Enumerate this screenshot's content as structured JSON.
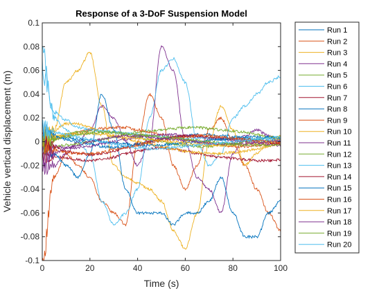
{
  "chart_data": {
    "type": "line",
    "title": "Response of a 3-DoF Suspension Model",
    "xlabel": "Time (s)",
    "ylabel": "Vehicle vertical displacement (m)",
    "xlim": [
      0,
      100
    ],
    "ylim": [
      -0.1,
      0.1
    ],
    "xticks": [
      0,
      20,
      40,
      60,
      80,
      100
    ],
    "xtick_labels": [
      "0",
      "20",
      "40",
      "60",
      "80",
      "100"
    ],
    "yticks": [
      -0.1,
      -0.08,
      -0.06,
      -0.04,
      -0.02,
      0,
      0.02,
      0.04,
      0.06,
      0.08,
      0.1
    ],
    "ytick_labels": [
      "-0.1",
      "-0.08",
      "-0.06",
      "-0.04",
      "-0.02",
      "0",
      "0.02",
      "0.04",
      "0.06",
      "0.08",
      "0.1"
    ],
    "grid": false,
    "legend_position": "outside-right",
    "x": [
      0,
      5,
      10,
      15,
      20,
      25,
      30,
      35,
      40,
      45,
      50,
      55,
      60,
      65,
      70,
      75,
      80,
      85,
      90,
      95,
      100
    ],
    "series": [
      {
        "name": "Run 1",
        "color": "#0072BD",
        "values": [
          0.01,
          0.005,
          0.002,
          0.0,
          -0.002,
          -0.004,
          -0.005,
          -0.004,
          -0.002,
          0.0,
          0.002,
          0.004,
          0.005,
          0.006,
          0.006,
          0.005,
          0.004,
          0.003,
          0.002,
          0.001,
          0.0
        ]
      },
      {
        "name": "Run 2",
        "color": "#D95319",
        "values": [
          -0.1,
          -0.03,
          -0.01,
          -0.02,
          -0.03,
          -0.05,
          -0.06,
          -0.07,
          0.0,
          0.04,
          0.02,
          -0.02,
          -0.04,
          -0.02,
          0.01,
          0.02,
          0.0,
          -0.02,
          -0.04,
          -0.06,
          -0.075
        ]
      },
      {
        "name": "Run 3",
        "color": "#EDB120",
        "values": [
          0.0,
          0.01,
          0.05,
          0.06,
          0.075,
          0.03,
          -0.02,
          -0.03,
          -0.035,
          -0.04,
          -0.05,
          -0.075,
          -0.09,
          -0.06,
          0.0,
          0.03,
          0.01,
          -0.02,
          -0.01,
          0.0,
          0.005
        ]
      },
      {
        "name": "Run 4",
        "color": "#7E2F8E",
        "values": [
          -0.02,
          -0.02,
          -0.01,
          0.0,
          0.01,
          0.03,
          0.02,
          0.0,
          -0.02,
          0.0,
          0.08,
          0.06,
          0.0,
          -0.03,
          -0.04,
          -0.06,
          -0.01,
          0.005,
          0.01,
          0.005,
          0.0
        ]
      },
      {
        "name": "Run 5",
        "color": "#77AC30",
        "values": [
          -0.005,
          -0.004,
          -0.003,
          -0.002,
          0.0,
          0.002,
          0.004,
          0.006,
          0.008,
          0.009,
          0.01,
          0.011,
          0.012,
          0.012,
          0.011,
          0.01,
          0.009,
          0.008,
          0.006,
          0.004,
          0.002
        ]
      },
      {
        "name": "Run 6",
        "color": "#4DBEEE",
        "values": [
          0.075,
          0.02,
          0.01,
          0.0,
          -0.01,
          -0.05,
          -0.07,
          -0.06,
          -0.04,
          0.02,
          0.06,
          0.07,
          0.05,
          0.0,
          -0.02,
          -0.01,
          0.02,
          0.03,
          0.04,
          0.05,
          0.055
        ]
      },
      {
        "name": "Run 7",
        "color": "#A2142F",
        "values": [
          -0.01,
          -0.012,
          -0.014,
          -0.015,
          -0.016,
          -0.015,
          -0.013,
          -0.01,
          -0.008,
          -0.006,
          -0.005,
          -0.006,
          -0.008,
          -0.01,
          -0.012,
          -0.013,
          -0.014,
          -0.015,
          -0.016,
          -0.016,
          -0.015
        ]
      },
      {
        "name": "Run 8",
        "color": "#0072BD",
        "values": [
          0.0,
          -0.01,
          -0.02,
          -0.03,
          -0.01,
          0.04,
          0.01,
          -0.04,
          -0.06,
          -0.06,
          -0.06,
          -0.07,
          -0.06,
          -0.06,
          -0.05,
          -0.03,
          -0.06,
          -0.08,
          -0.08,
          -0.06,
          -0.05
        ]
      },
      {
        "name": "Run 9",
        "color": "#D95319",
        "values": [
          -0.002,
          0.002,
          0.005,
          0.008,
          0.01,
          0.011,
          0.012,
          0.012,
          0.01,
          0.008,
          0.006,
          0.004,
          0.002,
          0.0,
          -0.002,
          -0.003,
          -0.004,
          -0.004,
          -0.003,
          -0.002,
          -0.001
        ]
      },
      {
        "name": "Run 10",
        "color": "#EDB120",
        "values": [
          0.005,
          0.01,
          0.015,
          0.015,
          0.012,
          0.008,
          0.005,
          0.002,
          0.0,
          -0.002,
          -0.004,
          -0.006,
          -0.008,
          -0.009,
          -0.01,
          -0.01,
          -0.009,
          -0.008,
          -0.006,
          -0.004,
          -0.002
        ]
      },
      {
        "name": "Run 11",
        "color": "#7E2F8E",
        "values": [
          -0.003,
          -0.004,
          -0.005,
          -0.005,
          -0.004,
          -0.002,
          0.0,
          0.002,
          0.004,
          0.005,
          0.006,
          0.006,
          0.005,
          0.004,
          0.003,
          0.002,
          0.001,
          0.0,
          -0.001,
          -0.002,
          -0.003
        ]
      },
      {
        "name": "Run 12",
        "color": "#77AC30",
        "values": [
          0.0,
          0.003,
          0.006,
          0.008,
          0.009,
          0.009,
          0.008,
          0.006,
          0.004,
          0.002,
          0.0,
          -0.002,
          -0.003,
          -0.004,
          -0.004,
          -0.003,
          -0.002,
          0.0,
          0.002,
          0.003,
          0.004
        ]
      },
      {
        "name": "Run 13",
        "color": "#4DBEEE",
        "values": [
          0.06,
          0.025,
          0.018,
          0.012,
          0.01,
          0.009,
          0.008,
          0.007,
          0.006,
          0.005,
          0.004,
          0.004,
          0.003,
          0.003,
          0.003,
          0.002,
          0.002,
          0.002,
          0.001,
          0.001,
          0.001
        ]
      },
      {
        "name": "Run 14",
        "color": "#A2142F",
        "values": [
          0.0,
          -0.004,
          -0.008,
          -0.01,
          -0.011,
          -0.01,
          -0.008,
          -0.005,
          -0.002,
          0.0,
          0.002,
          0.004,
          0.005,
          0.005,
          0.004,
          0.003,
          0.002,
          0.001,
          0.0,
          -0.001,
          -0.002
        ]
      },
      {
        "name": "Run 15",
        "color": "#0072BD",
        "values": [
          0.005,
          0.004,
          0.003,
          0.002,
          0.001,
          0.0,
          -0.001,
          -0.002,
          -0.003,
          -0.003,
          -0.003,
          -0.002,
          -0.001,
          0.0,
          0.001,
          0.002,
          0.003,
          0.004,
          0.004,
          0.004,
          0.003
        ]
      },
      {
        "name": "Run 16",
        "color": "#D95319",
        "values": [
          -0.005,
          -0.007,
          -0.009,
          -0.01,
          -0.01,
          -0.009,
          -0.007,
          -0.005,
          -0.003,
          -0.001,
          0.001,
          0.003,
          0.004,
          0.005,
          0.005,
          0.004,
          0.003,
          0.002,
          0.001,
          0.0,
          -0.001
        ]
      },
      {
        "name": "Run 17",
        "color": "#EDB120",
        "values": [
          0.002,
          0.004,
          0.006,
          0.007,
          0.007,
          0.006,
          0.005,
          0.004,
          0.003,
          0.002,
          0.001,
          0.0,
          -0.001,
          -0.002,
          -0.003,
          -0.003,
          -0.003,
          -0.002,
          -0.001,
          0.0,
          0.001
        ]
      },
      {
        "name": "Run 18",
        "color": "#7E2F8E",
        "values": [
          -0.015,
          -0.01,
          -0.006,
          -0.003,
          0.0,
          0.002,
          0.004,
          0.005,
          0.005,
          0.004,
          0.003,
          0.002,
          0.001,
          0.0,
          -0.001,
          -0.002,
          -0.002,
          -0.002,
          -0.001,
          0.0,
          0.001
        ]
      },
      {
        "name": "Run 19",
        "color": "#77AC30",
        "values": [
          0.0,
          0.002,
          0.004,
          0.006,
          0.007,
          0.008,
          0.008,
          0.007,
          0.006,
          0.005,
          0.004,
          0.003,
          0.002,
          0.001,
          0.0,
          -0.001,
          -0.002,
          -0.003,
          -0.003,
          -0.003,
          -0.002
        ]
      },
      {
        "name": "Run 20",
        "color": "#4DBEEE",
        "values": [
          0.01,
          0.008,
          0.006,
          0.004,
          0.002,
          0.0,
          -0.002,
          -0.004,
          -0.005,
          -0.006,
          -0.006,
          -0.005,
          -0.004,
          -0.003,
          -0.002,
          -0.001,
          0.0,
          0.001,
          0.002,
          0.003,
          0.004
        ]
      }
    ]
  }
}
